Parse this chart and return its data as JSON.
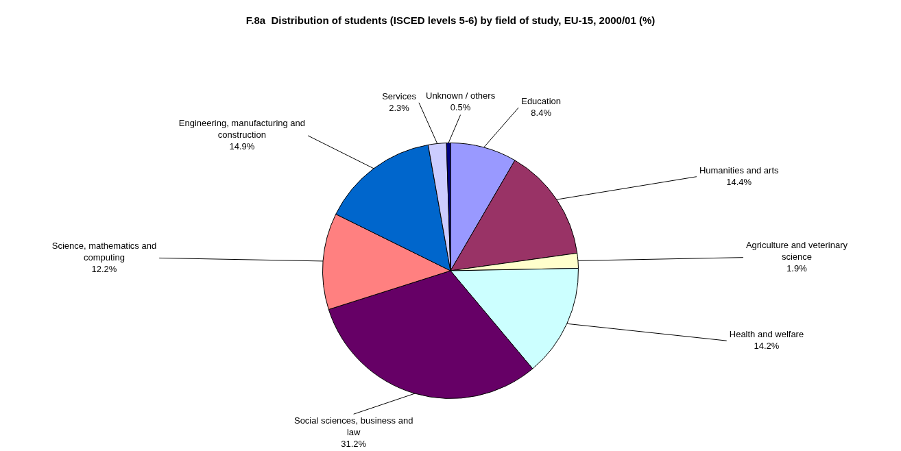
{
  "chart_data": {
    "type": "pie",
    "title": "F.8a  Distribution of students (ISCED levels 5-6) by field of study, EU-15, 2000/01 (%)",
    "categories": [
      "Education",
      "Humanities and arts",
      "Agriculture and veterinary science",
      "Health and welfare",
      "Social sciences, business and law",
      "Science, mathematics and computing",
      "Engineering, manufacturing and construction",
      "Services",
      "Unknown / others"
    ],
    "values": [
      8.4,
      14.4,
      1.9,
      14.2,
      31.2,
      12.2,
      14.9,
      2.3,
      0.5
    ],
    "value_labels": [
      "8.4%",
      "14.4%",
      "1.9%",
      "14.2%",
      "31.2%",
      "12.2%",
      "14.9%",
      "2.3%",
      "0.5%"
    ],
    "colors": [
      "#9999ff",
      "#993366",
      "#ffffcc",
      "#ccffff",
      "#660066",
      "#ff8080",
      "#0066cc",
      "#ccccff",
      "#000080"
    ],
    "legend": false
  }
}
